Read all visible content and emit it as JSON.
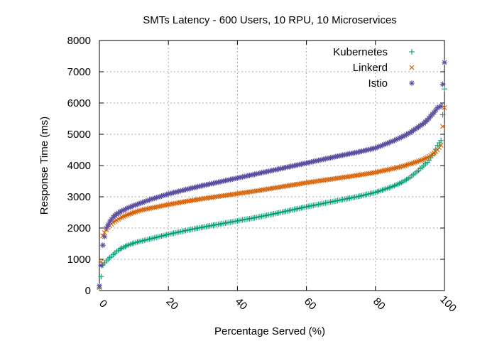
{
  "chart_data": {
    "type": "scatter",
    "title": "SMTs Latency - 600 Users, 10 RPU, 10 Microservices",
    "xlabel": "Percentage Served (%)",
    "ylabel": "Response Time (ms)",
    "xlim": [
      0,
      100
    ],
    "ylim": [
      0,
      8000
    ],
    "xticks": [
      "0",
      "20",
      "40",
      "60",
      "80",
      "100"
    ],
    "yticks": [
      "0",
      "1000",
      "2000",
      "3000",
      "4000",
      "5000",
      "6000",
      "7000",
      "8000"
    ],
    "grid": true,
    "legend_position": "top-right",
    "series": [
      {
        "name": "Kubernetes",
        "marker": "plus",
        "color": "#009E73",
        "x": [
          0,
          1,
          2,
          3,
          4,
          5,
          6,
          8,
          10,
          12,
          15,
          20,
          25,
          30,
          35,
          40,
          45,
          50,
          55,
          60,
          65,
          70,
          75,
          80,
          85,
          88,
          90,
          92,
          94,
          95,
          96,
          97,
          98,
          99,
          100
        ],
        "y": [
          80,
          820,
          950,
          1050,
          1150,
          1250,
          1330,
          1440,
          1520,
          1580,
          1660,
          1800,
          1920,
          2030,
          2130,
          2230,
          2330,
          2440,
          2560,
          2680,
          2790,
          2900,
          3010,
          3140,
          3330,
          3480,
          3620,
          3800,
          4000,
          4100,
          4250,
          4400,
          4650,
          4800,
          6450
        ]
      },
      {
        "name": "Linkerd",
        "marker": "cross",
        "color": "#D55E00",
        "x": [
          0,
          1,
          2,
          3,
          4,
          5,
          6,
          8,
          10,
          12,
          15,
          20,
          25,
          30,
          35,
          40,
          45,
          50,
          55,
          60,
          65,
          70,
          75,
          80,
          85,
          88,
          90,
          92,
          94,
          95,
          96,
          97,
          98,
          99,
          100
        ],
        "y": [
          100,
          1750,
          1950,
          2080,
          2180,
          2250,
          2320,
          2420,
          2500,
          2570,
          2640,
          2750,
          2850,
          2940,
          3020,
          3100,
          3180,
          3270,
          3360,
          3450,
          3530,
          3610,
          3690,
          3780,
          3900,
          3980,
          4050,
          4120,
          4200,
          4250,
          4320,
          4400,
          4500,
          4650,
          5850
        ]
      },
      {
        "name": "Istio",
        "marker": "star",
        "color": "#5B4FA0",
        "x": [
          0,
          1,
          2,
          3,
          4,
          5,
          6,
          8,
          10,
          12,
          15,
          20,
          25,
          30,
          35,
          40,
          45,
          50,
          55,
          60,
          65,
          70,
          75,
          80,
          85,
          88,
          90,
          92,
          94,
          95,
          96,
          97,
          98,
          99,
          100
        ],
        "y": [
          150,
          1450,
          2000,
          2200,
          2350,
          2450,
          2520,
          2630,
          2720,
          2800,
          2920,
          3090,
          3230,
          3360,
          3480,
          3600,
          3720,
          3840,
          3960,
          4080,
          4200,
          4320,
          4430,
          4560,
          4780,
          4930,
          5050,
          5200,
          5350,
          5450,
          5580,
          5700,
          5850,
          5900,
          7300
        ]
      }
    ]
  }
}
